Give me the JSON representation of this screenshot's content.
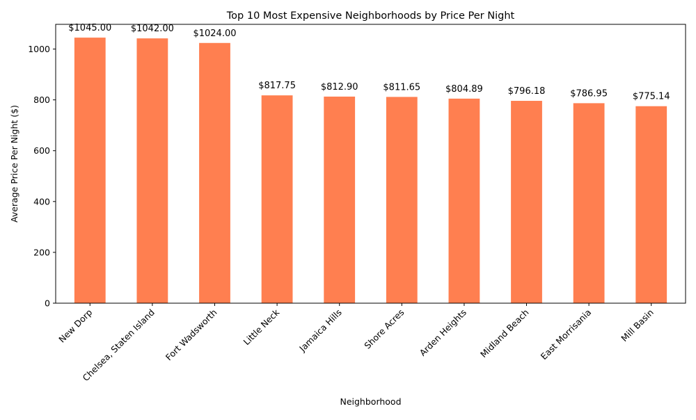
{
  "chart_data": {
    "type": "bar",
    "title": "Top 10 Most Expensive Neighborhoods by Price Per Night",
    "xlabel": "Neighborhood",
    "ylabel": "Average Price Per Night ($)",
    "categories": [
      "New Dorp",
      "Chelsea, Staten Island",
      "Fort Wadsworth",
      "Little Neck",
      "Jamaica Hills",
      "Shore Acres",
      "Arden Heights",
      "Midland Beach",
      "East Morrisania",
      "Mill Basin"
    ],
    "values": [
      1045.0,
      1042.0,
      1024.0,
      817.75,
      812.9,
      811.65,
      804.89,
      796.18,
      786.95,
      775.14
    ],
    "value_labels": [
      "$1045.00",
      "$1042.00",
      "$1024.00",
      "$817.75",
      "$812.90",
      "$811.65",
      "$804.89",
      "$796.18",
      "$786.95",
      "$775.14"
    ],
    "ylim": [
      0,
      1097.25
    ],
    "yticks": [
      0,
      200,
      400,
      600,
      800,
      1000
    ],
    "ytick_labels": [
      "0",
      "200",
      "400",
      "600",
      "800",
      "1000"
    ],
    "grid": false,
    "legend": "none",
    "bar_color": "#ff7f50"
  }
}
